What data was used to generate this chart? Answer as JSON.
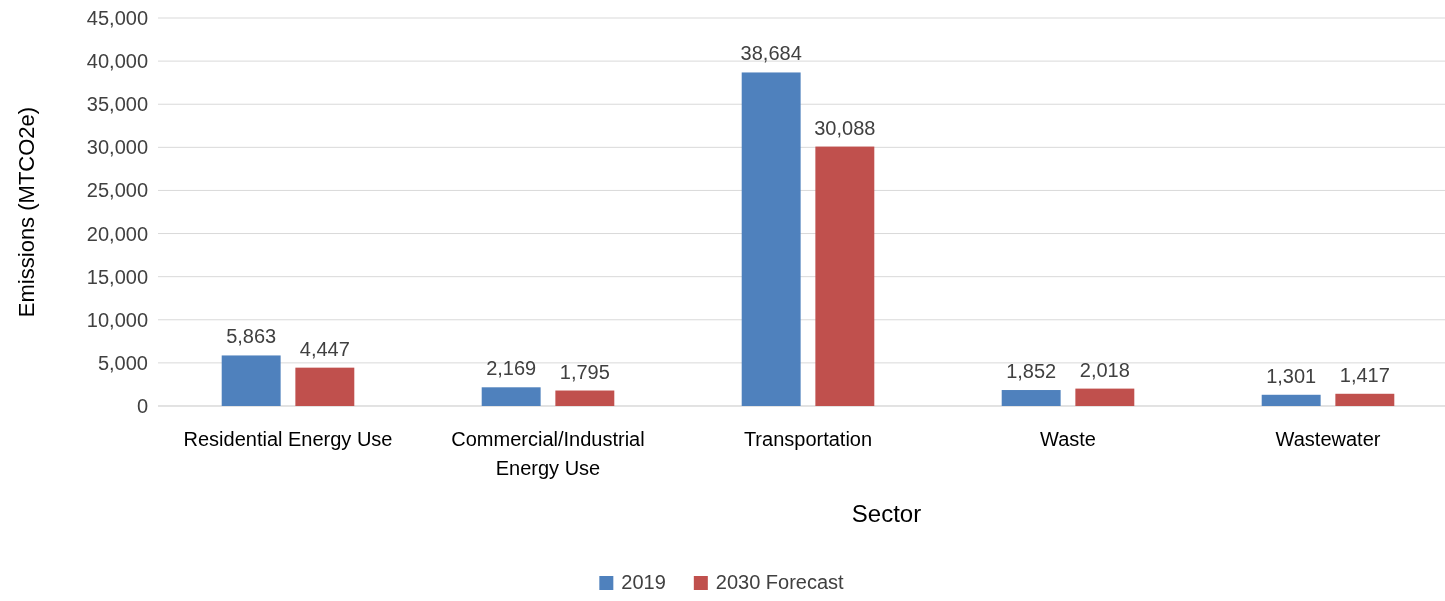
{
  "chart_data": {
    "type": "bar",
    "xlabel": "Sector",
    "ylabel": "Emissions (MTCO2e)",
    "categories": [
      "Residential Energy Use",
      "Commercial/Industrial Energy Use",
      "Transportation",
      "Waste",
      "Wastewater"
    ],
    "series": [
      {
        "name": "2019",
        "color": "#4f81bd",
        "values": [
          5863,
          2169,
          38684,
          1852,
          1301
        ],
        "value_labels": [
          "5,863",
          "2,169",
          "38,684",
          "1,852",
          "1,301"
        ]
      },
      {
        "name": "2030 Forecast",
        "color": "#c0504d",
        "values": [
          4447,
          1795,
          30088,
          2018,
          1417
        ],
        "value_labels": [
          "4,447",
          "1,795",
          "30,088",
          "2,018",
          "1,417"
        ]
      }
    ],
    "ylim": [
      0,
      45000
    ],
    "yticks": [
      0,
      {
        "value": 5000,
        "label": "5,000"
      },
      {
        "value": 10000,
        "label": "10,000"
      },
      {
        "value": 15000,
        "label": "15,000"
      },
      {
        "value": 20000,
        "label": "20,000"
      },
      {
        "value": 25000,
        "label": "25,000"
      },
      {
        "value": 30000,
        "label": "30,000"
      },
      {
        "value": 35000,
        "label": "35,000"
      },
      {
        "value": 40000,
        "label": "40,000"
      },
      {
        "value": 45000,
        "label": "45,000"
      }
    ],
    "grid": "y",
    "legend": "bottom"
  }
}
